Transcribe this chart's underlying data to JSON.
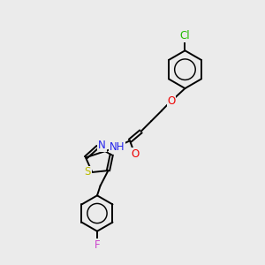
{
  "bg_color": "#ebebeb",
  "bond_color": "#000000",
  "bond_width": 1.4,
  "atoms": {
    "Cl": {
      "color": "#22bb00",
      "fontsize": 8.5
    },
    "O": {
      "color": "#ee0000",
      "fontsize": 8.5
    },
    "N": {
      "color": "#2222ee",
      "fontsize": 8.5
    },
    "S": {
      "color": "#bbbb00",
      "fontsize": 8.5
    },
    "F": {
      "color": "#cc44cc",
      "fontsize": 8.5
    }
  },
  "figsize": [
    3.0,
    3.0
  ],
  "dpi": 100
}
